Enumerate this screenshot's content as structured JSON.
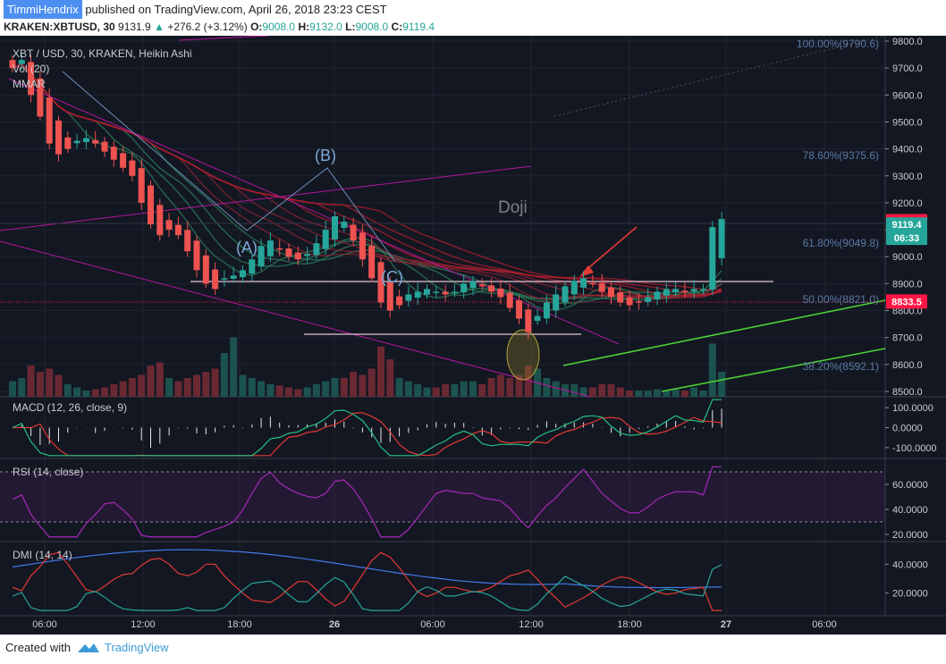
{
  "header": {
    "author": "TimmiHendrix",
    "published_text": "published on TradingView.com, April 26, 2018 23:23 CEST",
    "symbol": "KRAKEN:XBTUSD, 30",
    "last": "9131.9",
    "change": "+276.2 (+3.12%)",
    "o_label": "O:",
    "o_value": "9008.0",
    "h_label": "H:",
    "h_value": "9132.0",
    "l_label": "L:",
    "l_value": "9008.0",
    "c_label": "C:",
    "c_value": "9119.4"
  },
  "footer": {
    "created_with": "Created with",
    "brand": "TradingView"
  },
  "colors": {
    "background": "#131722",
    "bull": "#26a69a",
    "bear": "#ef5350",
    "price_label": "#ff1744",
    "last_label": "#26a69a",
    "macd": "#26c281",
    "signal": "#e53935",
    "rsi": "#9c27b0",
    "dmi_plus": "#26a69a",
    "dmi_minus": "#e53935",
    "adx": "#3f7be8",
    "trend_green": "#4cd137",
    "trend_magenta": "#b4169c"
  },
  "chart_data": [
    {
      "type": "candlestick",
      "title": "XBT / USD, 30, KRAKEN, Heikin Ashi",
      "indicators": [
        "Vol (20)",
        "MMAR"
      ],
      "x_tick_labels": [
        "06:00",
        "12:00",
        "18:00",
        "26",
        "06:00",
        "12:00",
        "18:00",
        "27",
        "06:00"
      ],
      "y_ticks": [
        8500,
        8600,
        8700,
        8800,
        8900,
        9000,
        9100,
        9200,
        9300,
        9400,
        9500,
        9600,
        9700,
        9800
      ],
      "y_tick_labels": [
        "8500.0",
        "8600.0",
        "8700.0",
        "8800.0",
        "8900.0",
        "9000.0",
        "9100.0",
        "9200.0",
        "9300.0",
        "9400.0",
        "9500.0",
        "9600.0",
        "9700.0",
        "9800.0"
      ],
      "ylim": [
        8480,
        9820
      ],
      "candles_close": [
        9700,
        9730,
        9600,
        9520,
        9420,
        9380,
        9400,
        9430,
        9440,
        9420,
        9390,
        9360,
        9330,
        9300,
        9200,
        9120,
        9080,
        9100,
        9080,
        9020,
        8950,
        8900,
        8880,
        8920,
        8930,
        8950,
        8990,
        9040,
        9060,
        9030,
        9000,
        8990,
        9010,
        9050,
        9100,
        9150,
        9130,
        9060,
        8990,
        8920,
        8830,
        8800,
        8820,
        8860,
        8870,
        8880,
        8870,
        8860,
        8870,
        8900,
        8910,
        8890,
        8870,
        8850,
        8810,
        8770,
        8720,
        8780,
        8830,
        8860,
        8890,
        8910,
        8920,
        8900,
        8870,
        8850,
        8830,
        8820,
        8830,
        8850,
        8870,
        8880,
        8880,
        8870,
        8880,
        8880,
        9110,
        9140
      ],
      "volume_levels": [
        0.25,
        0.3,
        0.5,
        0.4,
        0.45,
        0.35,
        0.2,
        0.15,
        0.1,
        0.12,
        0.15,
        0.2,
        0.25,
        0.3,
        0.35,
        0.5,
        0.55,
        0.3,
        0.25,
        0.3,
        0.35,
        0.4,
        0.45,
        0.7,
        0.95,
        0.35,
        0.3,
        0.25,
        0.2,
        0.18,
        0.15,
        0.12,
        0.15,
        0.2,
        0.25,
        0.3,
        0.3,
        0.4,
        0.35,
        0.45,
        0.8,
        0.6,
        0.3,
        0.25,
        0.2,
        0.15,
        0.15,
        0.2,
        0.2,
        0.25,
        0.25,
        0.2,
        0.3,
        0.35,
        0.3,
        0.35,
        0.5,
        0.45,
        0.3,
        0.25,
        0.2,
        0.2,
        0.15,
        0.15,
        0.2,
        0.2,
        0.15,
        0.1,
        0.1,
        0.1,
        0.12,
        0.1,
        0.12,
        0.1,
        0.15,
        0.1,
        0.85,
        0.4
      ],
      "fib_levels": [
        {
          "label": "100.00%(9790.6)",
          "value": 9790.6
        },
        {
          "label": "78.60%(9375.6)",
          "value": 9375.6
        },
        {
          "label": "61.80%(9049.8)",
          "value": 9049.8
        },
        {
          "label": "50.00%(8821.0)",
          "value": 8821.0
        },
        {
          "label": "38.20%(8592.1)",
          "value": 8592.1
        }
      ],
      "annotations": [
        "(A)",
        "(B)",
        "(C)",
        "Doji"
      ],
      "price_labels": [
        {
          "text": "9131.9",
          "value": 9131.9
        },
        {
          "text": "9119.4",
          "value": 9119.4
        },
        {
          "text": "06:33",
          "value": 9070
        },
        {
          "text": "8833.5",
          "value": 8833.5
        }
      ]
    },
    {
      "type": "line",
      "title": "MACD (12, 26, close, 9)",
      "y_tick_labels": [
        "100.0000",
        "0.0000",
        "-100.0000"
      ],
      "ylim": [
        -150,
        150
      ]
    },
    {
      "type": "line",
      "title": "RSI (14, close)",
      "y_tick_labels": [
        "60.0000",
        "40.0000",
        "20.0000"
      ],
      "ylim": [
        15,
        80
      ]
    },
    {
      "type": "line",
      "title": "DMI (14, 14)",
      "y_tick_labels": [
        "40.0000",
        "20.0000"
      ],
      "ylim": [
        5,
        55
      ]
    }
  ]
}
